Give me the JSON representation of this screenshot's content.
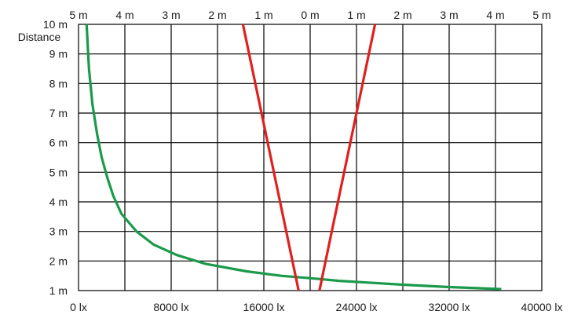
{
  "chart_data": {
    "type": "line",
    "title": "",
    "ylabel": "Distance",
    "xlabel": "",
    "bottom_axis": {
      "unit": "lx",
      "range": [
        0,
        40000
      ],
      "ticks": [
        "0 lx",
        "8000 lx",
        "16000 lx",
        "24000 lx",
        "32000 lx",
        "40000 lx"
      ]
    },
    "top_axis": {
      "unit": "m",
      "range": [
        -5,
        5
      ],
      "ticks": [
        "5 m",
        "4 m",
        "3 m",
        "2 m",
        "1 m",
        "0 m",
        "1 m",
        "2 m",
        "3 m",
        "4 m",
        "5 m"
      ]
    },
    "left_axis": {
      "unit": "m",
      "range": [
        1,
        10
      ],
      "ticks": [
        "1 m",
        "2 m",
        "3 m",
        "4 m",
        "5 m",
        "6 m",
        "7 m",
        "8 m",
        "9 m",
        "10 m"
      ]
    },
    "grid": true,
    "colors": {
      "illuminance": "#1a9a4a",
      "beam": "#e02020",
      "grid": "#000000"
    },
    "series": [
      {
        "kind": "illuminance",
        "axis": "bottom",
        "x": [
          700,
          900,
          1200,
          1600,
          2000,
          2500,
          3000,
          3700,
          5000,
          6500,
          8500,
          11000,
          14500,
          17500,
          20000,
          22500,
          25000,
          28000,
          32000,
          36500
        ],
        "y": [
          10,
          8.5,
          7.3,
          6.3,
          5.5,
          4.8,
          4.2,
          3.6,
          3.0,
          2.55,
          2.2,
          1.9,
          1.65,
          1.5,
          1.42,
          1.33,
          1.27,
          1.2,
          1.12,
          1.05
        ]
      },
      {
        "kind": "beam",
        "axis": "top",
        "x": [
          -1.45,
          -0.25
        ],
        "y": [
          10,
          1
        ]
      },
      {
        "kind": "beam",
        "axis": "top",
        "x": [
          1.4,
          0.2
        ],
        "y": [
          10,
          1
        ]
      }
    ]
  }
}
